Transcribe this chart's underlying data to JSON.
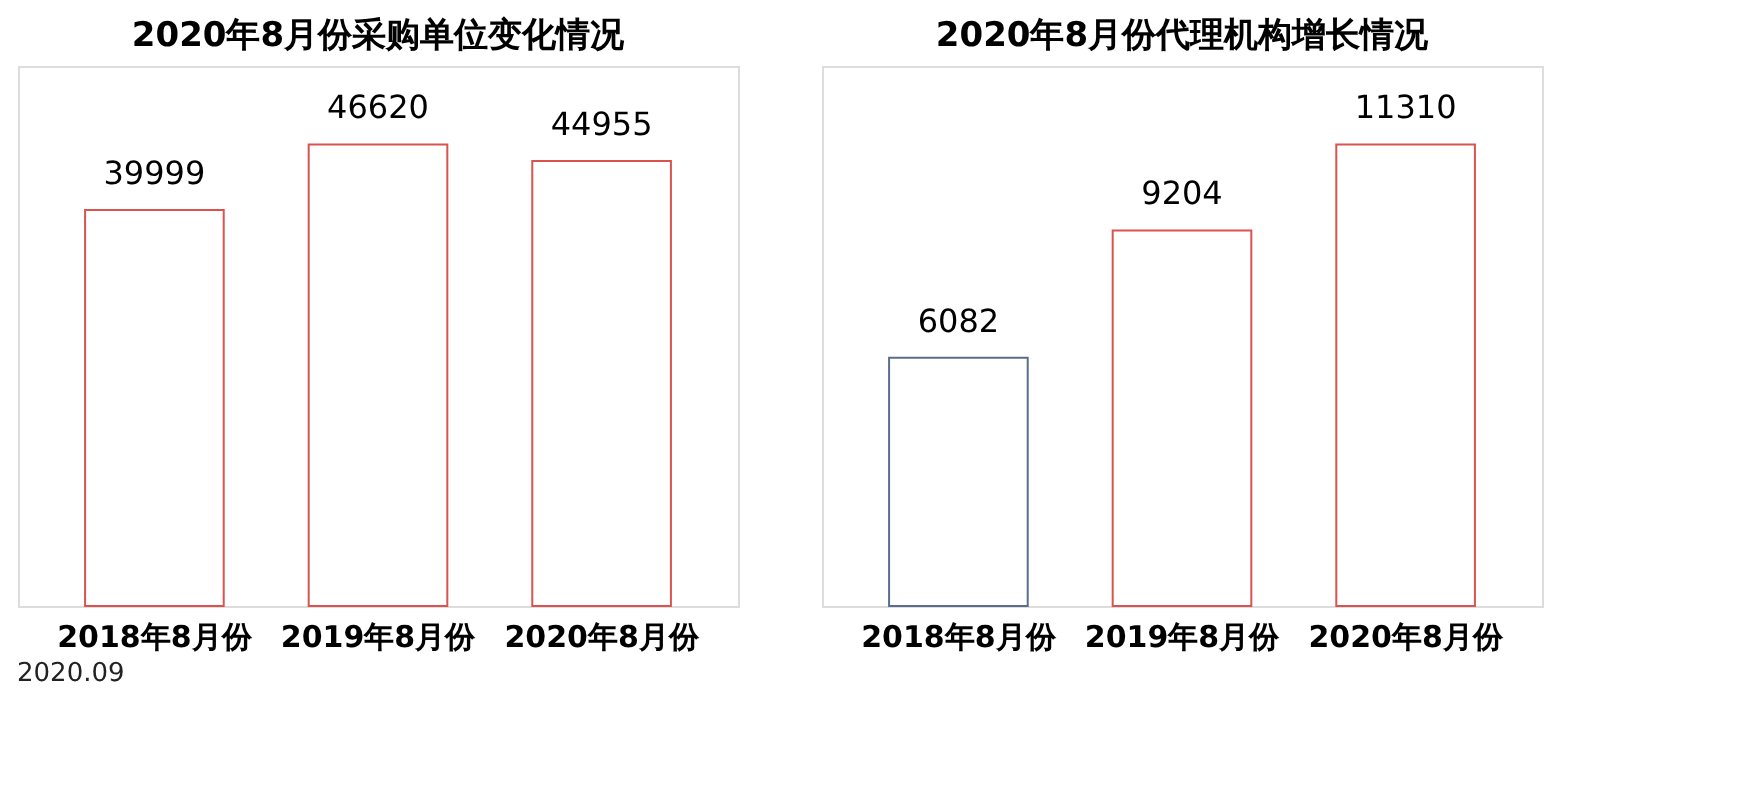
{
  "chart_data": [
    {
      "type": "bar",
      "title": "2020年8月份采购单位变化情况",
      "categories": [
        "2018年8月份",
        "2019年8月份",
        "2020年8月份"
      ],
      "values": [
        39999,
        46620,
        44955
      ],
      "colors": [
        "#d9534f",
        "#d9534f",
        "#d9534f"
      ],
      "data_labels": true,
      "annotations": [
        "2020.09"
      ]
    },
    {
      "type": "bar",
      "title": "2020年8月份代理机构增长情况",
      "categories": [
        "2018年8月份",
        "2019年8月份",
        "2020年8月份"
      ],
      "values": [
        6082,
        9204,
        11310
      ],
      "colors": [
        "#5a6e8c",
        "#d9534f",
        "#d9534f"
      ],
      "data_labels": true
    }
  ]
}
